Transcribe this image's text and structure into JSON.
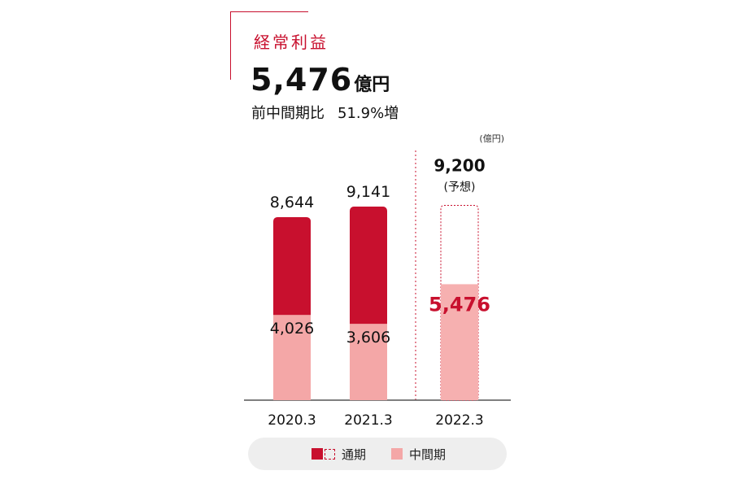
{
  "header": {
    "title": "経常利益",
    "value": "5,476",
    "unit": "億円",
    "compare_label": "前中間期比",
    "compare_value": "51.9%増"
  },
  "colors": {
    "accent": "#c8102e",
    "interim": "#f4a7a7",
    "forecast_interim": "#f6b0b0",
    "legend_bg": "#eeeeee"
  },
  "legend": {
    "full_year": "通期",
    "interim": "中間期"
  },
  "chart_data": {
    "type": "bar",
    "unit_label": "(億円)",
    "categories": [
      "2020.3",
      "2021.3",
      "2022.3"
    ],
    "series": [
      {
        "name": "通期",
        "values": [
          8644,
          9141,
          9200
        ]
      },
      {
        "name": "中間期",
        "values": [
          4026,
          3606,
          5476
        ]
      }
    ],
    "full_year_labels": [
      "8,644",
      "9,141",
      "9,200"
    ],
    "interim_labels": [
      "4,026",
      "3,606",
      "5,476"
    ],
    "forecast_index": 2,
    "forecast_note": "(予想)"
  }
}
